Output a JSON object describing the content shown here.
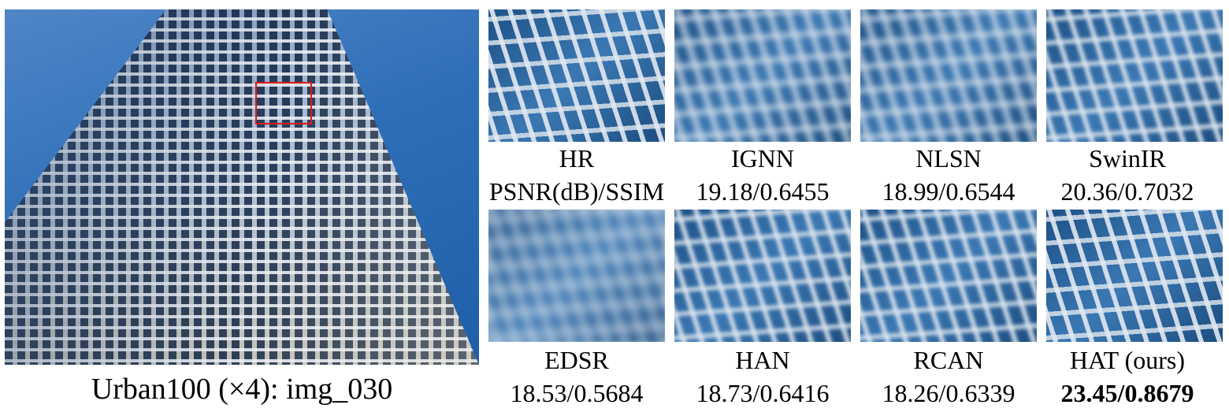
{
  "caption": "Urban100 (×4): img_030",
  "accent_color": "#e01818",
  "methods": [
    {
      "name": "HR",
      "metric": "PSNR(dB)/SSIM",
      "bold": false
    },
    {
      "name": "IGNN",
      "metric": "19.18/0.6455",
      "bold": false
    },
    {
      "name": "NLSN",
      "metric": "18.99/0.6544",
      "bold": false
    },
    {
      "name": "SwinIR",
      "metric": "20.36/0.7032",
      "bold": false
    },
    {
      "name": "EDSR",
      "metric": "18.53/0.5684",
      "bold": false
    },
    {
      "name": "HAN",
      "metric": "18.73/0.6416",
      "bold": false
    },
    {
      "name": "RCAN",
      "metric": "18.26/0.6339",
      "bold": false
    },
    {
      "name": "HAT (ours)",
      "metric": "23.45/0.8679",
      "bold": true
    }
  ]
}
